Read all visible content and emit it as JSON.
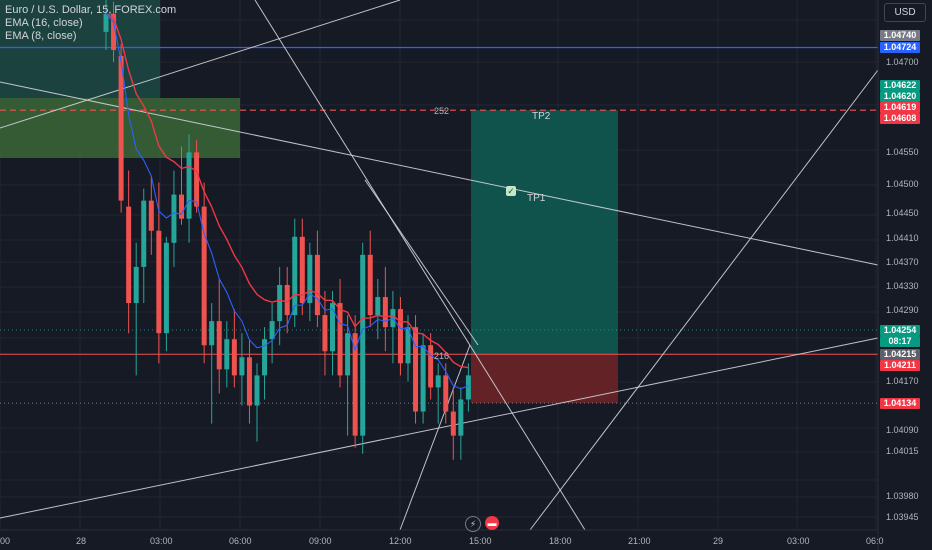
{
  "legend": {
    "symbol": "Euro / U.S. Dollar, 15, FOREX.com",
    "ema16": "EMA (16, close)",
    "ema8": "EMA (8, close)"
  },
  "currency_button": "USD",
  "colors": {
    "background": "#161a25",
    "up": "#26a69a",
    "down": "#ef5350",
    "ema16": "#f23645",
    "ema8": "#2962ff",
    "blue_line": "#2962ff",
    "tp_zone": "#0f5e55",
    "sl_zone": "#6b2326",
    "demand_zone": "#3d6b3a"
  },
  "axes": {
    "y_ticks": [
      "1.04700",
      "1.04550",
      "1.04500",
      "1.04450",
      "1.04410",
      "1.04370",
      "1.04330",
      "1.04290",
      "1.04170",
      "1.04090",
      "1.04015",
      "1.03980",
      "1.03945"
    ],
    "x_ticks": [
      "00",
      "28",
      "03:00",
      "06:00",
      "09:00",
      "12:00",
      "15:00",
      "18:00",
      "21:00",
      "29",
      "03:00",
      "06:0"
    ]
  },
  "price_tags": [
    {
      "label": "1.04740",
      "color": "#787b86"
    },
    {
      "label": "1.04724",
      "color": "#2962ff"
    },
    {
      "label": "1.04622",
      "color": "#089981"
    },
    {
      "label": "1.04620",
      "color": "#089981"
    },
    {
      "label": "1.04619",
      "color": "#f23645"
    },
    {
      "label": "1.04608",
      "color": "#f23645"
    },
    {
      "label": "1.04254",
      "color": "#089981"
    },
    {
      "label": "08:17",
      "color": "#089981"
    },
    {
      "label": "1.04215",
      "color": "#5d606b"
    },
    {
      "label": "1.04211",
      "color": "#f23645"
    },
    {
      "label": "1.04134",
      "color": "#f23645"
    }
  ],
  "annotations": {
    "tp2": "TP2",
    "tp1": "TP1",
    "ticks_tp": "252",
    "ticks_sl": "216"
  },
  "chart_data": {
    "type": "candlestick",
    "title": "Euro / U.S. Dollar, 15, FOREX.com",
    "ylim": [
      1.0393,
      1.0478
    ],
    "levels": {
      "blue_line": 1.04724,
      "entry": 1.04215,
      "take_profit": 1.0462,
      "stop_loss": 1.04134
    },
    "candles": [
      [
        1.0475,
        1.0481,
        1.0472,
        1.0478
      ],
      [
        1.0478,
        1.048,
        1.047,
        1.0472
      ],
      [
        1.0471,
        1.0473,
        1.0445,
        1.0447
      ],
      [
        1.0446,
        1.0452,
        1.0425,
        1.043
      ],
      [
        1.043,
        1.044,
        1.0418,
        1.0436
      ],
      [
        1.0436,
        1.0449,
        1.043,
        1.0447
      ],
      [
        1.0447,
        1.0451,
        1.0438,
        1.0442
      ],
      [
        1.0442,
        1.045,
        1.042,
        1.0425
      ],
      [
        1.0425,
        1.0441,
        1.0422,
        1.044
      ],
      [
        1.044,
        1.0452,
        1.0436,
        1.0448
      ],
      [
        1.0448,
        1.0456,
        1.0443,
        1.0444
      ],
      [
        1.0444,
        1.0458,
        1.044,
        1.0455
      ],
      [
        1.0455,
        1.0457,
        1.0445,
        1.0446
      ],
      [
        1.0446,
        1.045,
        1.042,
        1.0423
      ],
      [
        1.0423,
        1.043,
        1.041,
        1.0427
      ],
      [
        1.0427,
        1.0434,
        1.0415,
        1.0419
      ],
      [
        1.0419,
        1.0427,
        1.0416,
        1.0424
      ],
      [
        1.0424,
        1.0429,
        1.0416,
        1.0418
      ],
      [
        1.0418,
        1.0425,
        1.0413,
        1.0421
      ],
      [
        1.0421,
        1.0424,
        1.041,
        1.0413
      ],
      [
        1.0413,
        1.042,
        1.0407,
        1.0418
      ],
      [
        1.0418,
        1.0426,
        1.0414,
        1.0424
      ],
      [
        1.0424,
        1.043,
        1.042,
        1.0427
      ],
      [
        1.0427,
        1.0436,
        1.0423,
        1.0433
      ],
      [
        1.0433,
        1.0436,
        1.0425,
        1.0428
      ],
      [
        1.0428,
        1.0444,
        1.0426,
        1.0441
      ],
      [
        1.0441,
        1.0444,
        1.0428,
        1.043
      ],
      [
        1.043,
        1.044,
        1.0427,
        1.0438
      ],
      [
        1.0438,
        1.0442,
        1.0426,
        1.0428
      ],
      [
        1.0428,
        1.0432,
        1.0418,
        1.0422
      ],
      [
        1.0422,
        1.0432,
        1.0418,
        1.043
      ],
      [
        1.043,
        1.0434,
        1.0416,
        1.0418
      ],
      [
        1.0418,
        1.0428,
        1.0408,
        1.0425
      ],
      [
        1.0425,
        1.0428,
        1.0406,
        1.0408
      ],
      [
        1.0408,
        1.044,
        1.0405,
        1.0438
      ],
      [
        1.0438,
        1.0442,
        1.0426,
        1.0428
      ],
      [
        1.0428,
        1.0434,
        1.0424,
        1.0431
      ],
      [
        1.0431,
        1.0436,
        1.0422,
        1.0426
      ],
      [
        1.0426,
        1.0432,
        1.042,
        1.0429
      ],
      [
        1.0429,
        1.0431,
        1.0418,
        1.042
      ],
      [
        1.042,
        1.0428,
        1.0417,
        1.0426
      ],
      [
        1.0426,
        1.0428,
        1.041,
        1.0412
      ],
      [
        1.0412,
        1.0425,
        1.041,
        1.0423
      ],
      [
        1.0423,
        1.0425,
        1.0414,
        1.0416
      ],
      [
        1.0416,
        1.042,
        1.041,
        1.0418
      ],
      [
        1.0418,
        1.042,
        1.041,
        1.0412
      ],
      [
        1.0412,
        1.0416,
        1.0404,
        1.0408
      ],
      [
        1.0408,
        1.0416,
        1.0404,
        1.0414
      ],
      [
        1.0414,
        1.042,
        1.0412,
        1.0418
      ]
    ]
  }
}
